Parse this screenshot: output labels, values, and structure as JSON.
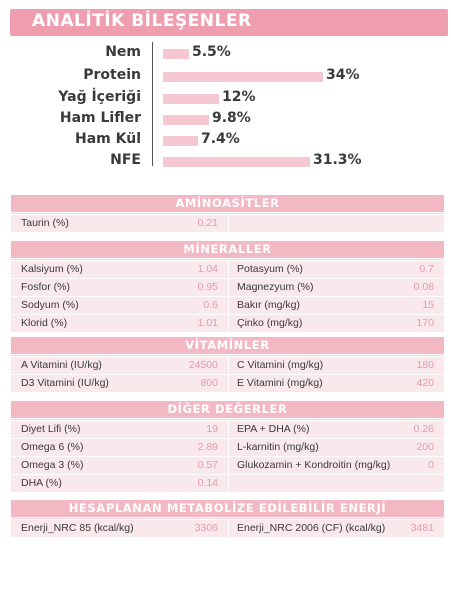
{
  "title": "ANALİTİK BİLEŞENLER",
  "analytic": [
    {
      "label": "Nem",
      "value": "5.5%",
      "bar_fraction": 0.055
    },
    {
      "label": "Protein",
      "value": "34%",
      "bar_fraction": 0.34
    },
    {
      "label": "Yağ İçeriği",
      "value": "12%",
      "bar_fraction": 0.12
    },
    {
      "label": "Ham Lifler",
      "value": "9.8%",
      "bar_fraction": 0.098
    },
    {
      "label": "Ham Kül",
      "value": "7.4%",
      "bar_fraction": 0.074
    },
    {
      "label": "NFE",
      "value": "31.3%",
      "bar_fraction": 0.313
    }
  ],
  "sections": {
    "aminoacids": {
      "title": "AMİNOASİTLER",
      "rows": [
        {
          "l1": "Taurin (%)",
          "v1": "0.21",
          "l2": "",
          "v2": ""
        }
      ]
    },
    "minerals": {
      "title": "MİNERALLER",
      "rows": [
        {
          "l1": "Kalsiyum (%)",
          "v1": "1.04",
          "l2": "Potasyum (%)",
          "v2": "0.7"
        },
        {
          "l1": "Fosfor (%)",
          "v1": "0.95",
          "l2": "Magnezyum (%)",
          "v2": "0.08"
        },
        {
          "l1": "Sodyum (%)",
          "v1": "0.6",
          "l2": "Bakır (mg/kg)",
          "v2": "15"
        },
        {
          "l1": "Klorid (%)",
          "v1": "1.01",
          "l2": "Çinko (mg/kg)",
          "v2": "170"
        }
      ]
    },
    "vitamins": {
      "title": "VİTAMİNLER",
      "rows": [
        {
          "l1": "A Vitamini (IU/kg)",
          "v1": "24500",
          "l2": "C Vitamini (mg/kg)",
          "v2": "180"
        },
        {
          "l1": "D3 Vitamini (IU/kg)",
          "v1": "800",
          "l2": "E Vitamini (mg/kg)",
          "v2": "420"
        }
      ]
    },
    "other": {
      "title": "DİĞER DEĞERLER",
      "rows": [
        {
          "l1": "Diyet Lifi (%)",
          "v1": "19",
          "l2": "EPA + DHA (%)",
          "v2": "0.26"
        },
        {
          "l1": "Omega 6 (%)",
          "v1": "2.89",
          "l2": "L-karnitin (mg/kg)",
          "v2": "200"
        },
        {
          "l1": "Omega 3 (%)",
          "v1": "0.57",
          "l2": "Glukozamin + Kondroitin (mg/kg)",
          "v2": "0"
        },
        {
          "l1": "DHA (%)",
          "v1": "0.14",
          "l2": "",
          "v2": ""
        }
      ]
    },
    "energy": {
      "title": "HESAPLANAN METABOLİZE EDİLEBİLİR ENERJİ",
      "rows": [
        {
          "l1": "Enerji_NRC 85 (kcal/kg)",
          "v1": "3306",
          "l2": "Enerji_NRC 2006 (CF) (kcal/kg)",
          "v2": "3481"
        }
      ]
    }
  }
}
